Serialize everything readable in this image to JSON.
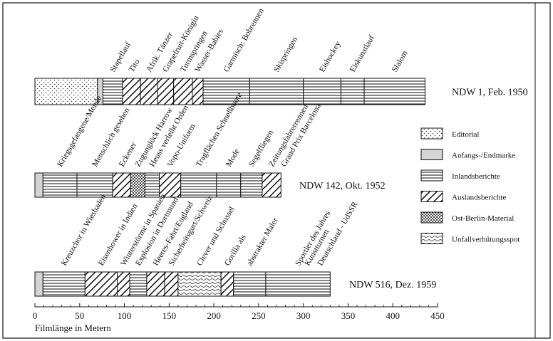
{
  "chart_data": {
    "type": "bar",
    "orientation": "horizontal-stacked",
    "xlabel": "Filmlänge in Metern",
    "xlim": [
      0,
      450
    ],
    "xticks": [
      0,
      50,
      100,
      150,
      200,
      250,
      300,
      350,
      400,
      450
    ],
    "categories_legend": [
      {
        "key": "editorial",
        "label": "Editorial",
        "pattern": "dots"
      },
      {
        "key": "marke",
        "label": "Anfangs-/Endmarke",
        "pattern": "gray"
      },
      {
        "key": "inland",
        "label": "Inlandsberichte",
        "pattern": "hlines"
      },
      {
        "key": "ausland",
        "label": "Auslandsberichte",
        "pattern": "diag"
      },
      {
        "key": "ostberlin",
        "label": "Ost-Berlin-Material",
        "pattern": "dense"
      },
      {
        "key": "unfall",
        "label": "Unfallverhütungsspot",
        "pattern": "waves"
      }
    ],
    "bars": [
      {
        "name": "NDW 1, Feb. 1950",
        "segments": [
          {
            "start": 0,
            "end": 70,
            "type": "editorial",
            "label": ""
          },
          {
            "start": 70,
            "end": 76,
            "type": "marke",
            "label": ""
          },
          {
            "start": 76,
            "end": 98,
            "type": "inland",
            "label": "Stapellauf"
          },
          {
            "start": 98,
            "end": 118,
            "type": "ausland",
            "label": "Tito"
          },
          {
            "start": 118,
            "end": 137,
            "type": "ausland",
            "label": "Afrik. Tänzer"
          },
          {
            "start": 137,
            "end": 155,
            "type": "ausland",
            "label": "Grapefruit-Königin"
          },
          {
            "start": 155,
            "end": 176,
            "type": "ausland",
            "label": "Turmspringen"
          },
          {
            "start": 176,
            "end": 188,
            "type": "ausland",
            "label": "Wasser-Babies"
          },
          {
            "start": 188,
            "end": 240,
            "type": "inland",
            "label": "Garmisch: Bobrennen"
          },
          {
            "start": 240,
            "end": 300,
            "type": "inland",
            "label": "Skispringen"
          },
          {
            "start": 300,
            "end": 342,
            "type": "inland",
            "label": "Eishockey"
          },
          {
            "start": 342,
            "end": 368,
            "type": "inland",
            "label": "Eiskunstlauf"
          },
          {
            "start": 368,
            "end": 436,
            "type": "inland",
            "label": "Slalom"
          }
        ]
      },
      {
        "name": "NDW 142, Okt. 1952",
        "segments": [
          {
            "start": 0,
            "end": 9,
            "type": "marke",
            "label": ""
          },
          {
            "start": 9,
            "end": 47,
            "type": "inland",
            "label": "Kriegsgefangene/Mende"
          },
          {
            "start": 47,
            "end": 87,
            "type": "inland",
            "label": "Menschlich gesehen"
          },
          {
            "start": 87,
            "end": 107,
            "type": "ausland",
            "label": "Eckener"
          },
          {
            "start": 107,
            "end": 123,
            "type": "ostberlin",
            "label": "Zugunglück Harrow"
          },
          {
            "start": 123,
            "end": 139,
            "type": "inland",
            "label": "Heuss verleiht Orden"
          },
          {
            "start": 139,
            "end": 163,
            "type": "ausland",
            "label": "Vopo-Uniform"
          },
          {
            "start": 163,
            "end": 203,
            "type": "inland",
            "label": "Tragflächen Schnellboote"
          },
          {
            "start": 203,
            "end": 230,
            "type": "inland",
            "label": "Mode"
          },
          {
            "start": 230,
            "end": 254,
            "type": "inland",
            "label": "Segelfliegen"
          },
          {
            "start": 254,
            "end": 275,
            "type": "ausland",
            "label": "Zeitungsfahrerrennen"
          }
        ]
      },
      {
        "name": "NDW 516, Dez. 1959",
        "segments": [
          {
            "start": 0,
            "end": 9,
            "type": "marke",
            "label": ""
          },
          {
            "start": 9,
            "end": 56,
            "type": "inland",
            "label": "Kreuzchor in Wiesbaden"
          },
          {
            "start": 56,
            "end": 92,
            "type": "ausland",
            "label": "Eisenhower in Indien"
          },
          {
            "start": 92,
            "end": 106,
            "type": "ausland",
            "label": "Winterstürme in Spanien"
          },
          {
            "start": 106,
            "end": 125,
            "type": "inland",
            "label": "Explosion in Dortmund"
          },
          {
            "start": 125,
            "end": 145,
            "type": "ausland",
            "label": "Heeres-Fahrt/England"
          },
          {
            "start": 145,
            "end": 160,
            "type": "ausland",
            "label": "Sicherheitsgurt/Schweiz"
          },
          {
            "start": 160,
            "end": 208,
            "type": "unfall",
            "label": "Clever und Schussel"
          },
          {
            "start": 208,
            "end": 222,
            "type": "ausland",
            "label": "Gorilla als"
          },
          {
            "start": 222,
            "end": 258,
            "type": "inland",
            "label": "abstrakter Maler"
          },
          {
            "start": 258,
            "end": 330,
            "type": "inland",
            "label": "Sportler des Jahres"
          }
        ],
        "extra_labels": [
          "Kunstturnen",
          "Deutschland - UdSSR"
        ]
      }
    ],
    "extra_labels_ndw142": [
      "Grand Prix Barcelona"
    ]
  }
}
